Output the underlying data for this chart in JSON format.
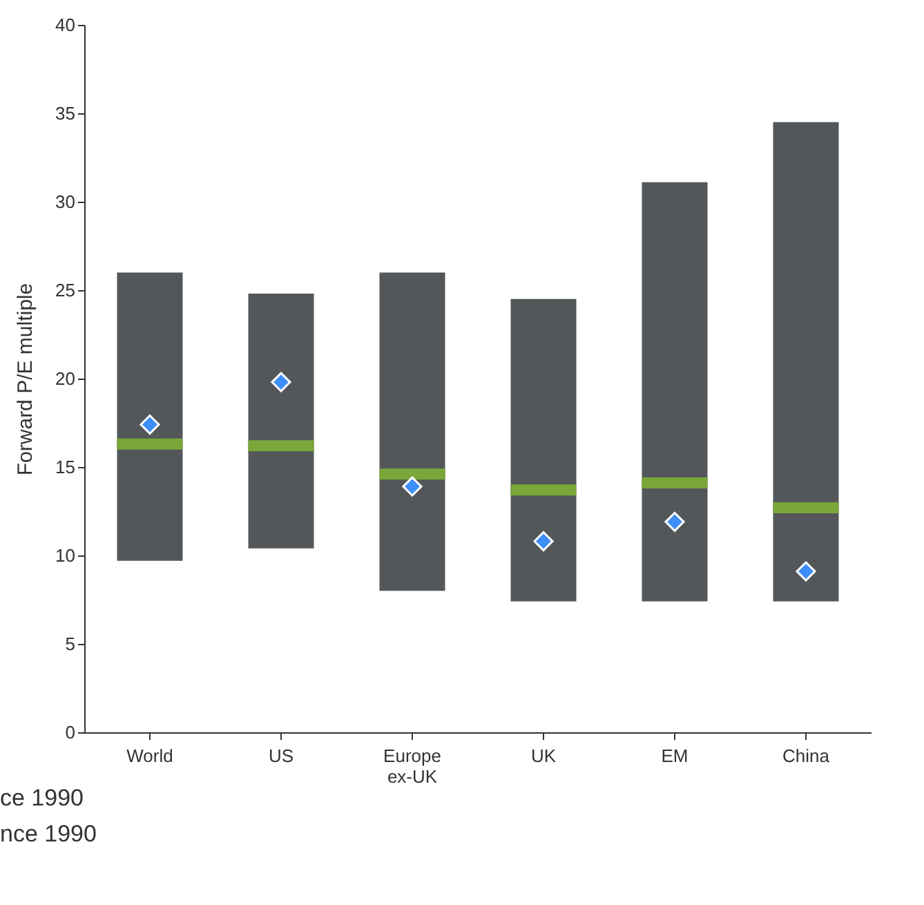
{
  "chart_data": {
    "type": "box",
    "ylabel": "Forward P/E multiple",
    "categories": [
      "World",
      "US",
      "Europe\nex-UK",
      "UK",
      "EM",
      "China"
    ],
    "ylim": [
      0,
      40
    ],
    "yticks": [
      0,
      5,
      10,
      15,
      20,
      25,
      30,
      35,
      40
    ],
    "grid": false,
    "series": [
      {
        "color": "#53575a",
        "boxes": [
          {
            "low": 9.7,
            "q1": 9.7,
            "median": 16.3,
            "q3": 26.0,
            "high": 26.0
          },
          {
            "low": 10.4,
            "q1": 10.4,
            "median": 16.2,
            "q3": 24.8,
            "high": 24.8
          },
          {
            "low": 8.0,
            "q1": 8.0,
            "median": 14.6,
            "q3": 26.0,
            "high": 26.0
          },
          {
            "low": 7.4,
            "q1": 7.4,
            "median": 13.7,
            "q3": 24.5,
            "high": 24.5
          },
          {
            "low": 7.4,
            "q1": 7.4,
            "median": 14.1,
            "q3": 31.1,
            "high": 31.1
          },
          {
            "low": 7.4,
            "q1": 7.4,
            "median": 12.7,
            "q3": 34.5,
            "high": 34.5
          }
        ]
      },
      {
        "type": "scatter",
        "color": "#3e8ef7",
        "marker": "diamond",
        "x": [
          "World",
          "US",
          "Europe\nex-UK",
          "UK",
          "EM",
          "China"
        ],
        "values": [
          17.4,
          19.8,
          13.9,
          10.8,
          11.9,
          9.1
        ]
      }
    ],
    "annotations": [
      "ce 1990",
      "nce 1990"
    ]
  }
}
